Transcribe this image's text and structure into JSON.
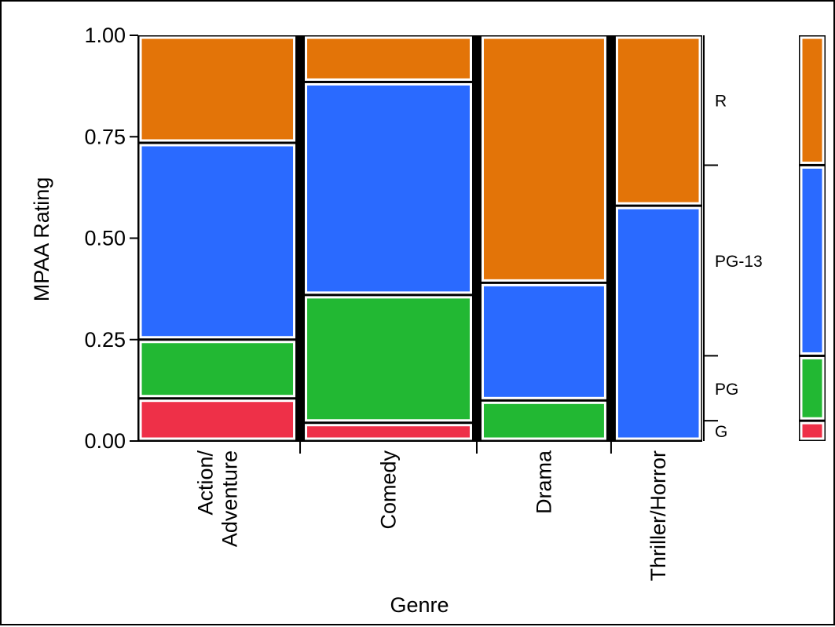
{
  "chart_data": {
    "type": "mosaic",
    "title": "",
    "xlabel": "Genre",
    "ylabel": "MPAA Rating",
    "ylim": [
      0,
      1
    ],
    "yticks": [
      "0.00",
      "0.25",
      "0.50",
      "0.75",
      "1.00"
    ],
    "categories": [
      "Action/\nAdventure",
      "Comedy",
      "Drama",
      "Thriller/Horror"
    ],
    "column_widths": [
      0.28,
      0.3,
      0.225,
      0.155
    ],
    "series": [
      {
        "name": "G",
        "color": "#EE3048",
        "values": [
          0.105,
          0.045,
          0.0,
          0.0
        ]
      },
      {
        "name": "PG",
        "color": "#22B833",
        "values": [
          0.145,
          0.315,
          0.1,
          0.0
        ]
      },
      {
        "name": "PG-13",
        "color": "#2A6AFF",
        "values": [
          0.485,
          0.525,
          0.29,
          0.58
        ]
      },
      {
        "name": "R",
        "color": "#E37408",
        "values": [
          0.265,
          0.115,
          0.61,
          0.42
        ]
      }
    ],
    "marginal_shares": [
      0.05,
      0.16,
      0.47,
      0.32
    ]
  }
}
